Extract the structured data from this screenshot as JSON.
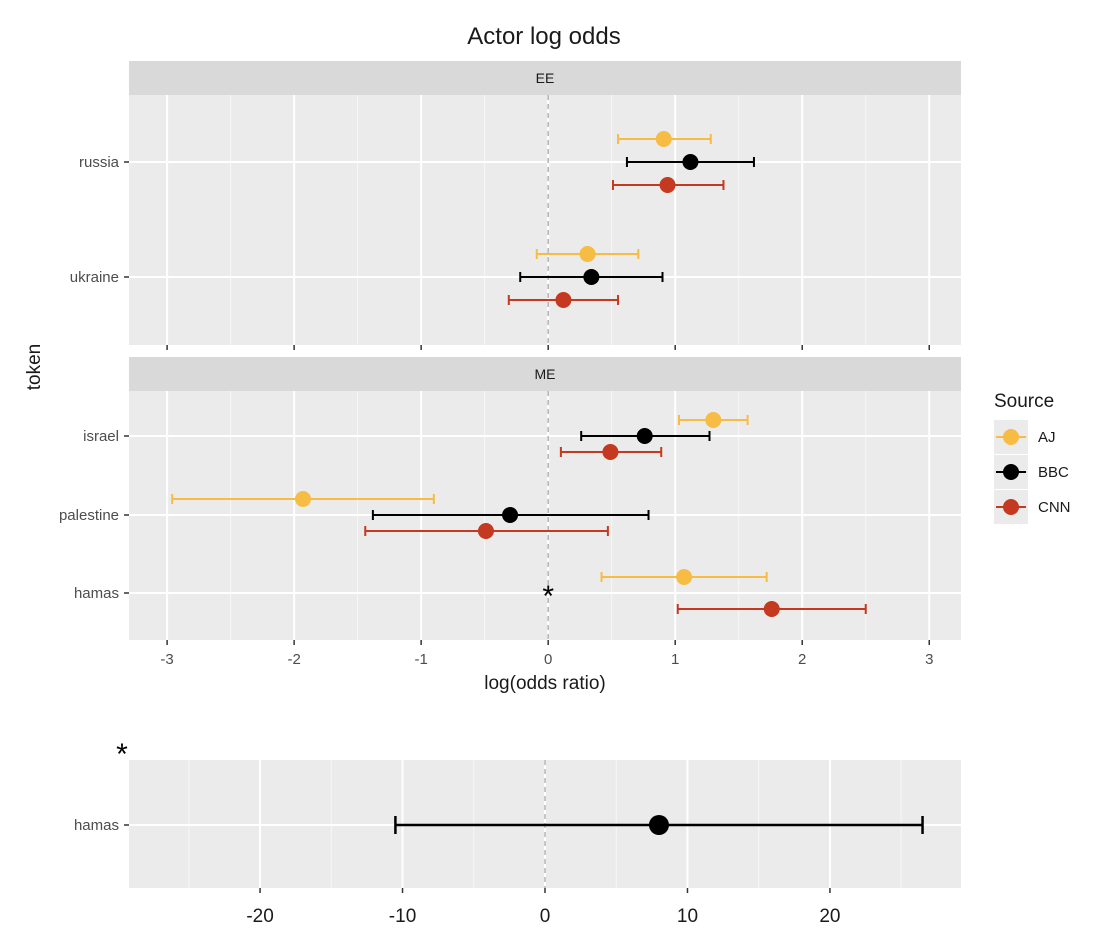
{
  "title": "Actor log odds",
  "y_axis_label": "token",
  "x_axis_label": "log(odds ratio)",
  "note_marker": "*",
  "legend": {
    "title": "Source",
    "entries": [
      {
        "name": "AJ",
        "color": "#F6BC43"
      },
      {
        "name": "BBC",
        "color": "#000000"
      },
      {
        "name": "CNN",
        "color": "#C4391F"
      }
    ]
  },
  "chart_data": [
    {
      "type": "errorbar",
      "panel": "EE",
      "xlim": [
        -3.3,
        3.25
      ],
      "xticks": [
        -3,
        -2,
        -1,
        0,
        1,
        2,
        3
      ],
      "reference_line_x": 0,
      "tokens": [
        "russia",
        "ukraine"
      ],
      "series": [
        {
          "name": "AJ",
          "points": [
            {
              "token": "russia",
              "estimate": 0.91,
              "low": 0.55,
              "high": 1.28
            },
            {
              "token": "ukraine",
              "estimate": 0.31,
              "low": -0.09,
              "high": 0.71
            }
          ]
        },
        {
          "name": "BBC",
          "points": [
            {
              "token": "russia",
              "estimate": 1.12,
              "low": 0.62,
              "high": 1.62
            },
            {
              "token": "ukraine",
              "estimate": 0.34,
              "low": -0.22,
              "high": 0.9
            }
          ]
        },
        {
          "name": "CNN",
          "points": [
            {
              "token": "russia",
              "estimate": 0.94,
              "low": 0.51,
              "high": 1.38
            },
            {
              "token": "ukraine",
              "estimate": 0.12,
              "low": -0.31,
              "high": 0.55
            }
          ]
        }
      ]
    },
    {
      "type": "errorbar",
      "panel": "ME",
      "xlim": [
        -3.3,
        3.25
      ],
      "xticks": [
        -3,
        -2,
        -1,
        0,
        1,
        2,
        3
      ],
      "reference_line_x": 0,
      "tokens": [
        "israel",
        "palestine",
        "hamas"
      ],
      "series": [
        {
          "name": "AJ",
          "points": [
            {
              "token": "israel",
              "estimate": 1.3,
              "low": 1.03,
              "high": 1.57
            },
            {
              "token": "palestine",
              "estimate": -1.93,
              "low": -2.96,
              "high": -0.9
            },
            {
              "token": "hamas",
              "estimate": 1.07,
              "low": 0.42,
              "high": 1.72
            }
          ]
        },
        {
          "name": "BBC",
          "points": [
            {
              "token": "israel",
              "estimate": 0.76,
              "low": 0.26,
              "high": 1.27
            },
            {
              "token": "palestine",
              "estimate": -0.3,
              "low": -1.38,
              "high": 0.79
            }
          ]
        },
        {
          "name": "CNN",
          "points": [
            {
              "token": "israel",
              "estimate": 0.49,
              "low": 0.1,
              "high": 0.89
            },
            {
              "token": "palestine",
              "estimate": -0.49,
              "low": -1.44,
              "high": 0.47
            },
            {
              "token": "hamas",
              "estimate": 1.76,
              "low": 1.02,
              "high": 2.5
            }
          ]
        }
      ]
    },
    {
      "type": "errorbar",
      "panel": "inset",
      "xlim": [
        -29.2,
        29.2
      ],
      "xticks": [
        -20,
        -10,
        0,
        10,
        20
      ],
      "minor_xticks": [
        -25,
        -15,
        -5,
        5,
        15,
        25
      ],
      "reference_line_x": 0,
      "tokens": [
        "hamas"
      ],
      "series": [
        {
          "name": "BBC",
          "points": [
            {
              "token": "hamas",
              "estimate": 8.0,
              "low": -10.5,
              "high": 26.5
            }
          ]
        }
      ]
    }
  ]
}
